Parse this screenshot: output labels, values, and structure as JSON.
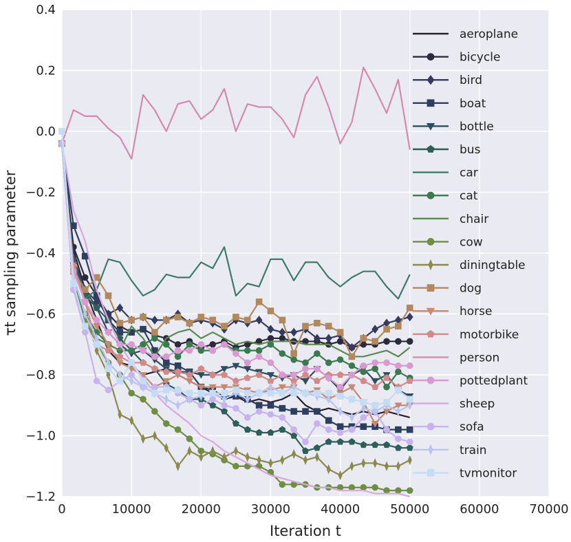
{
  "chart_data": {
    "type": "line",
    "xlabel": "Iteration t",
    "ylabel": "τt sampling parameter",
    "xlim": [
      0,
      70000
    ],
    "ylim": [
      -1.2,
      0.4
    ],
    "x_ticks": [
      "0",
      "10000",
      "20000",
      "30000",
      "40000",
      "50000",
      "60000",
      "70000"
    ],
    "y_ticks": [
      "0.4",
      "0.2",
      "0.0",
      "−0.2",
      "−0.4",
      "−0.6",
      "−0.8",
      "−1.0",
      "−1.2"
    ],
    "grid": true,
    "legend_position": "right",
    "x": [
      0,
      1667,
      3333,
      5000,
      6667,
      8333,
      10000,
      11667,
      13333,
      15000,
      16667,
      18333,
      20000,
      21667,
      23333,
      25000,
      26667,
      28333,
      30000,
      31667,
      33333,
      35000,
      36667,
      38333,
      40000,
      41667,
      43333,
      45000,
      46667,
      48333,
      50000
    ],
    "series": [
      {
        "name": "aeroplane",
        "color": "#2a1f2e",
        "marker": "none",
        "values": [
          -0.04,
          -0.39,
          -0.52,
          -0.62,
          -0.72,
          -0.76,
          -0.77,
          -0.8,
          -0.79,
          -0.78,
          -0.8,
          -0.82,
          -0.84,
          -0.86,
          -0.88,
          -0.87,
          -0.89,
          -0.88,
          -0.89,
          -0.88,
          -0.86,
          -0.9,
          -0.92,
          -0.91,
          -0.92,
          -0.93,
          -0.92,
          -0.93,
          -0.92,
          -0.93,
          -0.94
        ]
      },
      {
        "name": "bicycle",
        "color": "#2e2a3e",
        "marker": "circle",
        "values": [
          -0.04,
          -0.38,
          -0.48,
          -0.54,
          -0.6,
          -0.64,
          -0.66,
          -0.65,
          -0.67,
          -0.68,
          -0.7,
          -0.69,
          -0.71,
          -0.7,
          -0.69,
          -0.71,
          -0.7,
          -0.69,
          -0.68,
          -0.68,
          -0.69,
          -0.69,
          -0.69,
          -0.7,
          -0.69,
          -0.71,
          -0.7,
          -0.7,
          -0.69,
          -0.69,
          -0.69
        ]
      },
      {
        "name": "bird",
        "color": "#363a5e",
        "marker": "diamond",
        "values": [
          -0.04,
          -0.42,
          -0.52,
          -0.56,
          -0.6,
          -0.58,
          -0.62,
          -0.61,
          -0.62,
          -0.62,
          -0.6,
          -0.63,
          -0.62,
          -0.63,
          -0.65,
          -0.62,
          -0.63,
          -0.62,
          -0.65,
          -0.66,
          -0.66,
          -0.65,
          -0.68,
          -0.68,
          -0.67,
          -0.71,
          -0.68,
          -0.65,
          -0.63,
          -0.62,
          -0.61
        ]
      },
      {
        "name": "boat",
        "color": "#2e3f5e",
        "marker": "square",
        "values": [
          -0.04,
          -0.31,
          -0.41,
          -0.54,
          -0.62,
          -0.66,
          -0.66,
          -0.65,
          -0.72,
          -0.76,
          -0.77,
          -0.79,
          -0.84,
          -0.85,
          -0.87,
          -0.87,
          -0.88,
          -0.9,
          -0.9,
          -0.91,
          -0.92,
          -0.92,
          -0.92,
          -0.95,
          -0.97,
          -0.97,
          -0.97,
          -0.97,
          -0.98,
          -0.98,
          -0.98
        ]
      },
      {
        "name": "bottle",
        "color": "#2e4e5e",
        "marker": "triangle-down",
        "values": [
          -0.04,
          -0.44,
          -0.52,
          -0.58,
          -0.66,
          -0.7,
          -0.73,
          -0.72,
          -0.75,
          -0.78,
          -0.79,
          -0.79,
          -0.8,
          -0.8,
          -0.78,
          -0.77,
          -0.78,
          -0.79,
          -0.8,
          -0.81,
          -0.8,
          -0.82,
          -0.78,
          -0.81,
          -0.85,
          -0.8,
          -0.78,
          -0.82,
          -0.8,
          -0.85,
          -0.87
        ]
      },
      {
        "name": "bus",
        "color": "#2e5e5a",
        "marker": "pentagon",
        "values": [
          -0.04,
          -0.42,
          -0.54,
          -0.58,
          -0.62,
          -0.68,
          -0.72,
          -0.76,
          -0.78,
          -0.83,
          -0.85,
          -0.88,
          -0.88,
          -0.9,
          -0.92,
          -0.96,
          -0.98,
          -0.99,
          -0.99,
          -0.98,
          -1.0,
          -1.05,
          -1.04,
          -1.02,
          -1.02,
          -1.02,
          -1.03,
          -1.03,
          -1.03,
          -1.04,
          -1.04
        ]
      },
      {
        "name": "car",
        "color": "#3e7a68",
        "marker": "none",
        "values": [
          -0.04,
          -0.45,
          -0.55,
          -0.52,
          -0.42,
          -0.43,
          -0.49,
          -0.54,
          -0.52,
          -0.47,
          -0.48,
          -0.48,
          -0.43,
          -0.45,
          -0.38,
          -0.54,
          -0.5,
          -0.51,
          -0.42,
          -0.42,
          -0.49,
          -0.43,
          -0.43,
          -0.48,
          -0.51,
          -0.48,
          -0.46,
          -0.46,
          -0.51,
          -0.55,
          -0.47
        ]
      },
      {
        "name": "cat",
        "color": "#3a7a4e",
        "marker": "circle",
        "values": [
          -0.04,
          -0.5,
          -0.6,
          -0.66,
          -0.7,
          -0.72,
          -0.72,
          -0.7,
          -0.68,
          -0.7,
          -0.74,
          -0.7,
          -0.72,
          -0.72,
          -0.7,
          -0.72,
          -0.72,
          -0.72,
          -0.7,
          -0.73,
          -0.75,
          -0.76,
          -0.73,
          -0.76,
          -0.75,
          -0.77,
          -0.79,
          -0.78,
          -0.84,
          -0.79,
          -0.81
        ]
      },
      {
        "name": "chair",
        "color": "#5a8a52",
        "marker": "none",
        "values": [
          -0.04,
          -0.5,
          -0.62,
          -0.68,
          -0.7,
          -0.72,
          -0.64,
          -0.68,
          -0.74,
          -0.68,
          -0.66,
          -0.65,
          -0.68,
          -0.66,
          -0.68,
          -0.7,
          -0.69,
          -0.7,
          -0.69,
          -0.69,
          -0.69,
          -0.7,
          -0.7,
          -0.7,
          -0.72,
          -0.74,
          -0.74,
          -0.73,
          -0.72,
          -0.74,
          -0.71
        ]
      },
      {
        "name": "cow",
        "color": "#6e8e42",
        "marker": "circle",
        "values": [
          -0.04,
          -0.52,
          -0.62,
          -0.7,
          -0.76,
          -0.8,
          -0.86,
          -0.88,
          -0.92,
          -0.96,
          -0.98,
          -1.01,
          -1.05,
          -1.06,
          -1.08,
          -1.1,
          -1.1,
          -1.1,
          -1.12,
          -1.16,
          -1.16,
          -1.16,
          -1.17,
          -1.17,
          -1.17,
          -1.17,
          -1.17,
          -1.17,
          -1.18,
          -1.18,
          -1.18
        ]
      },
      {
        "name": "diningtable",
        "color": "#8a8a4e",
        "marker": "thin-diamond",
        "values": [
          -0.04,
          -0.48,
          -0.6,
          -0.72,
          -0.8,
          -0.93,
          -0.95,
          -1.01,
          -1.0,
          -1.04,
          -1.1,
          -1.05,
          -1.07,
          -1.05,
          -1.07,
          -1.05,
          -1.07,
          -1.08,
          -1.09,
          -1.08,
          -1.06,
          -1.08,
          -1.07,
          -1.11,
          -1.13,
          -1.1,
          -1.09,
          -1.09,
          -1.1,
          -1.1,
          -1.08
        ]
      },
      {
        "name": "dog",
        "color": "#b08a5e",
        "marker": "square",
        "values": [
          -0.04,
          -0.46,
          -0.52,
          -0.48,
          -0.54,
          -0.63,
          -0.62,
          -0.61,
          -0.66,
          -0.62,
          -0.61,
          -0.63,
          -0.61,
          -0.62,
          -0.64,
          -0.61,
          -0.62,
          -0.56,
          -0.59,
          -0.62,
          -0.73,
          -0.64,
          -0.63,
          -0.64,
          -0.66,
          -0.74,
          -0.68,
          -0.69,
          -0.65,
          -0.64,
          -0.58
        ]
      },
      {
        "name": "horse",
        "color": "#c48a74",
        "marker": "triangle-down",
        "values": [
          -0.04,
          -0.45,
          -0.56,
          -0.64,
          -0.7,
          -0.76,
          -0.78,
          -0.8,
          -0.84,
          -0.82,
          -0.8,
          -0.82,
          -0.84,
          -0.84,
          -0.84,
          -0.84,
          -0.85,
          -0.86,
          -0.85,
          -0.84,
          -0.84,
          -0.86,
          -0.85,
          -0.88,
          -0.86,
          -0.84,
          -0.89,
          -0.96,
          -0.92,
          -0.9,
          -0.9
        ]
      },
      {
        "name": "motorbike",
        "color": "#d08a8a",
        "marker": "pentagon",
        "values": [
          -0.04,
          -0.44,
          -0.56,
          -0.7,
          -0.72,
          -0.74,
          -0.76,
          -0.76,
          -0.78,
          -0.79,
          -0.79,
          -0.8,
          -0.78,
          -0.8,
          -0.8,
          -0.82,
          -0.81,
          -0.8,
          -0.82,
          -0.8,
          -0.82,
          -0.8,
          -0.82,
          -0.8,
          -0.8,
          -0.8,
          -0.82,
          -0.84,
          -0.81,
          -0.84,
          -0.82
        ]
      },
      {
        "name": "person",
        "color": "#d48ab0",
        "marker": "none",
        "values": [
          -0.04,
          0.07,
          0.05,
          0.05,
          0.01,
          -0.02,
          -0.09,
          0.12,
          0.07,
          0.0,
          0.09,
          0.1,
          0.04,
          0.07,
          0.14,
          0.0,
          0.09,
          0.08,
          0.08,
          0.04,
          -0.02,
          0.12,
          0.18,
          0.08,
          -0.04,
          0.03,
          0.21,
          0.14,
          0.06,
          0.17,
          -0.06
        ]
      },
      {
        "name": "pottedplant",
        "color": "#d89ad0",
        "marker": "circle",
        "values": [
          -0.04,
          -0.46,
          -0.56,
          -0.62,
          -0.66,
          -0.7,
          -0.7,
          -0.72,
          -0.74,
          -0.74,
          -0.72,
          -0.72,
          -0.7,
          -0.72,
          -0.7,
          -0.73,
          -0.76,
          -0.74,
          -0.76,
          -0.8,
          -0.8,
          -0.78,
          -0.78,
          -0.81,
          -0.84,
          -0.8,
          -0.77,
          -0.76,
          -0.76,
          -0.77,
          -0.77
        ]
      },
      {
        "name": "sheep",
        "color": "#d8a8e0",
        "marker": "none",
        "values": [
          -0.04,
          -0.26,
          -0.36,
          -0.52,
          -0.62,
          -0.7,
          -0.76,
          -0.81,
          -0.86,
          -0.9,
          -0.93,
          -0.96,
          -1.0,
          -1.02,
          -1.05,
          -1.07,
          -1.09,
          -1.11,
          -1.13,
          -1.14,
          -1.15,
          -1.16,
          -1.17,
          -1.17,
          -1.18,
          -1.18,
          -1.18,
          -1.19,
          -1.19,
          -1.19,
          -1.2
        ]
      },
      {
        "name": "sofa",
        "color": "#c8b4ec",
        "marker": "circle",
        "values": [
          -0.04,
          -0.52,
          -0.66,
          -0.82,
          -0.85,
          -0.82,
          -0.8,
          -0.84,
          -0.84,
          -0.84,
          -0.86,
          -0.88,
          -0.9,
          -0.88,
          -0.9,
          -0.91,
          -0.94,
          -0.92,
          -0.93,
          -0.94,
          -0.98,
          -1.02,
          -0.96,
          -0.98,
          -0.99,
          -0.98,
          -0.94,
          -0.92,
          -0.98,
          -1.01,
          -1.02
        ]
      },
      {
        "name": "train",
        "color": "#bac4f0",
        "marker": "thin-diamond",
        "values": [
          -0.04,
          -0.48,
          -0.6,
          -0.68,
          -0.76,
          -0.8,
          -0.82,
          -0.84,
          -0.86,
          -0.88,
          -0.9,
          -0.88,
          -0.87,
          -0.86,
          -0.88,
          -0.86,
          -0.88,
          -0.86,
          -0.84,
          -0.86,
          -0.84,
          -0.86,
          -0.87,
          -0.88,
          -0.92,
          -0.94,
          -0.91,
          -0.92,
          -0.9,
          -0.92,
          -0.9
        ]
      },
      {
        "name": "tvmonitor",
        "color": "#c4dcf4",
        "marker": "square",
        "values": [
          0.0,
          -0.5,
          -0.64,
          -0.7,
          -0.78,
          -0.82,
          -0.76,
          -0.82,
          -0.86,
          -0.85,
          -0.85,
          -0.86,
          -0.86,
          -0.86,
          -0.86,
          -0.85,
          -0.86,
          -0.86,
          -0.86,
          -0.86,
          -0.86,
          -0.86,
          -0.86,
          -0.86,
          -0.87,
          -0.88,
          -0.89,
          -0.9,
          -0.89,
          -0.85,
          -0.88
        ]
      }
    ]
  }
}
